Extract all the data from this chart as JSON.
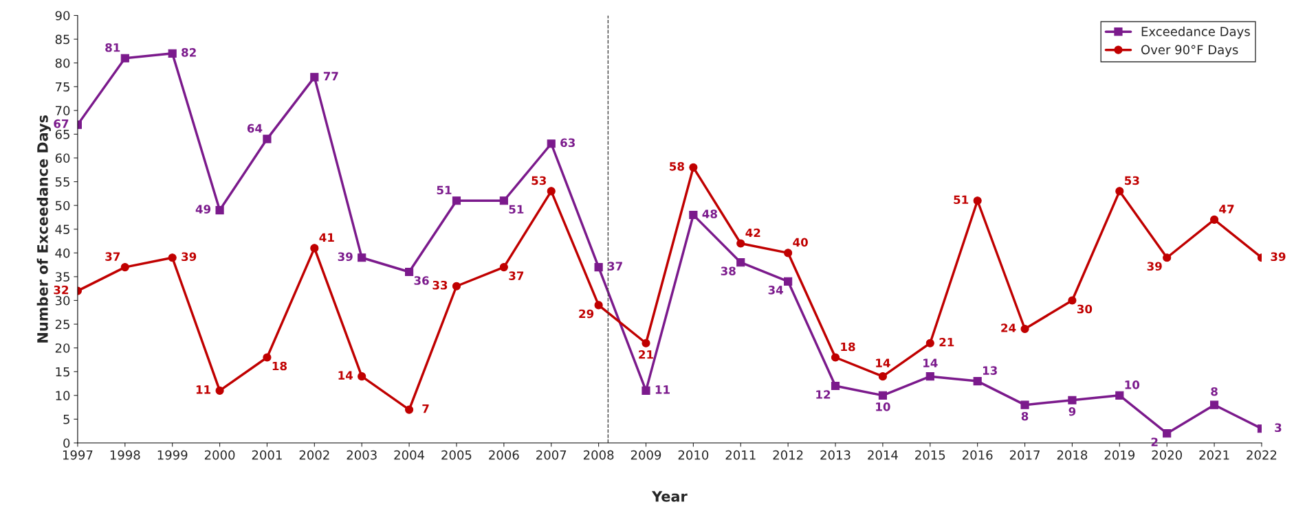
{
  "chart_data": {
    "type": "line",
    "xlabel": "Year",
    "ylabel": "Number of Exceedance Days",
    "x": [
      1997,
      1998,
      1999,
      2000,
      2001,
      2002,
      2003,
      2004,
      2005,
      2006,
      2007,
      2008,
      2009,
      2010,
      2011,
      2012,
      2013,
      2014,
      2015,
      2016,
      2017,
      2018,
      2019,
      2020,
      2021,
      2022
    ],
    "xlim": [
      1997,
      2022
    ],
    "xticks": [
      1997,
      1998,
      1999,
      2000,
      2001,
      2002,
      2003,
      2004,
      2005,
      2006,
      2007,
      2008,
      2009,
      2010,
      2011,
      2012,
      2013,
      2014,
      2015,
      2016,
      2017,
      2018,
      2019,
      2020,
      2021,
      2022
    ],
    "ylim": [
      0,
      90
    ],
    "yticks": [
      0,
      5,
      10,
      15,
      20,
      25,
      30,
      35,
      40,
      45,
      50,
      55,
      60,
      65,
      70,
      75,
      80,
      85,
      90
    ],
    "series": [
      {
        "name": "Exceedance Days",
        "color": "#7b1a8c",
        "marker": "square",
        "values": [
          67,
          81,
          82,
          49,
          64,
          77,
          39,
          36,
          51,
          51,
          63,
          37,
          11,
          48,
          38,
          34,
          12,
          10,
          14,
          13,
          8,
          9,
          10,
          2,
          8,
          3
        ]
      },
      {
        "name": "Over 90°F Days",
        "color": "#c00000",
        "marker": "circle",
        "values": [
          32,
          37,
          39,
          11,
          18,
          41,
          14,
          7,
          33,
          37,
          53,
          29,
          21,
          58,
          42,
          40,
          18,
          14,
          21,
          51,
          24,
          30,
          53,
          39,
          47,
          39
        ]
      }
    ],
    "ref_lines": [
      {
        "axis": "x",
        "value": 2008.2,
        "color": "#404040",
        "line_style": "dashed"
      }
    ],
    "data_labels": true,
    "grid": false,
    "legend": "top right",
    "line_style": "solid"
  }
}
